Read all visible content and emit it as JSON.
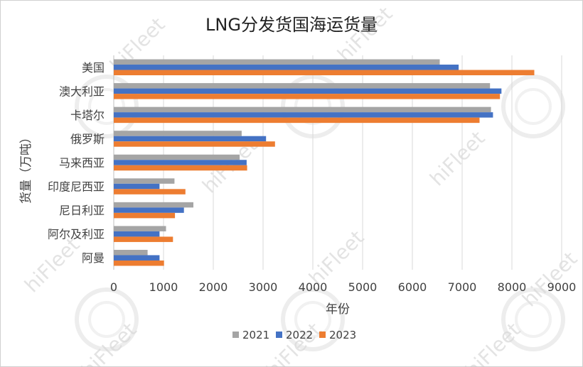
{
  "chart_data": {
    "type": "bar",
    "orientation": "horizontal",
    "title": "LNG分发货国海运货量",
    "xlabel": "年份",
    "ylabel": "货量（万吨）",
    "categories": [
      "美国",
      "澳大利亚",
      "卡塔尔",
      "俄罗斯",
      "马来西亚",
      "印度尼西亚",
      "尼日利亚",
      "阿尔及利亚",
      "阿曼"
    ],
    "xlim": [
      0,
      9000
    ],
    "xticks": [
      0,
      1000,
      2000,
      3000,
      4000,
      5000,
      6000,
      7000,
      8000,
      9000
    ],
    "grid": true,
    "legend_position": "bottom",
    "series": [
      {
        "name": "2021",
        "color": "#a5a5a5",
        "values": [
          6550,
          7560,
          7580,
          2570,
          2530,
          1220,
          1600,
          1050,
          680
        ]
      },
      {
        "name": "2022",
        "color": "#4472c4",
        "values": [
          6930,
          7790,
          7620,
          3060,
          2670,
          920,
          1410,
          920,
          920
        ]
      },
      {
        "name": "2023",
        "color": "#ed7d31",
        "values": [
          8450,
          7760,
          7350,
          3240,
          2680,
          1440,
          1230,
          1190,
          1010
        ]
      }
    ]
  },
  "watermark": {
    "text": "hiFleet"
  }
}
